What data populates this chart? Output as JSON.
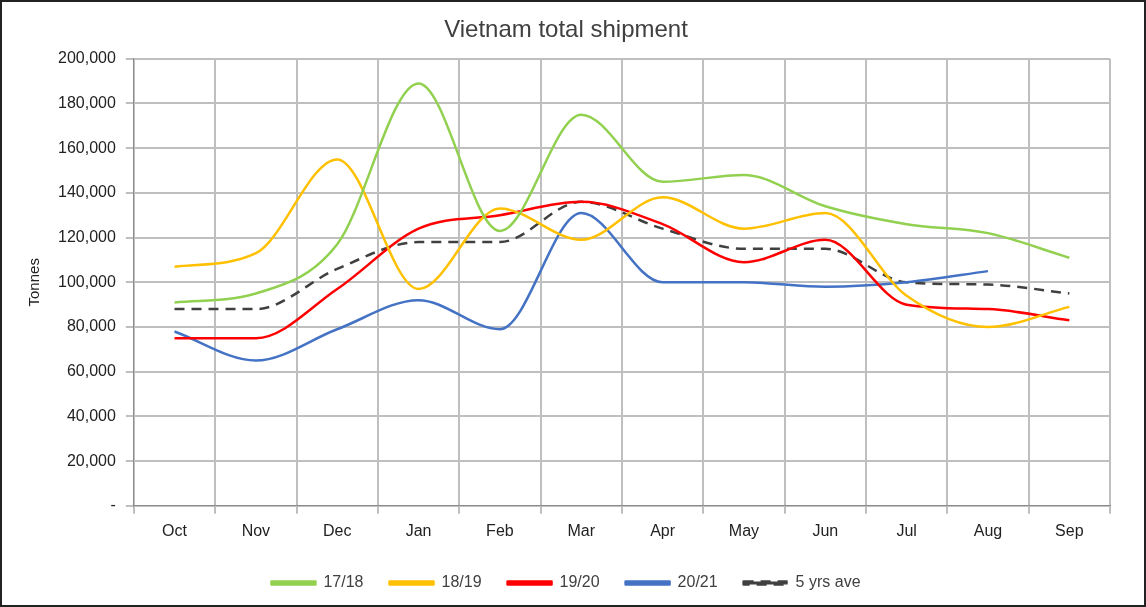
{
  "chart_data": {
    "type": "line",
    "title": "Vietnam total shipment",
    "ylabel": "Tonnes",
    "categories": [
      "Oct",
      "Nov",
      "Dec",
      "Jan",
      "Feb",
      "Mar",
      "Apr",
      "May",
      "Jun",
      "Jul",
      "Aug",
      "Sep"
    ],
    "series": [
      {
        "name": "17/18",
        "color": "#92d050",
        "values": [
          91000,
          95000,
          117000,
          189000,
          123000,
          175000,
          145000,
          148000,
          134000,
          126000,
          122000,
          111000
        ]
      },
      {
        "name": "18/19",
        "color": "#ffc000",
        "values": [
          107000,
          113000,
          155000,
          97000,
          133000,
          119000,
          138000,
          124000,
          131000,
          94000,
          80000,
          89000
        ]
      },
      {
        "name": "19/20",
        "color": "#ff0000",
        "values": [
          75000,
          75000,
          97000,
          124000,
          130000,
          136000,
          126000,
          109000,
          119000,
          90000,
          88000,
          83000
        ]
      },
      {
        "name": "20/21",
        "color": "#4472c4",
        "values": [
          78000,
          65000,
          79000,
          92000,
          79000,
          131000,
          100000,
          100000,
          98000,
          100000,
          105000,
          null
        ]
      },
      {
        "name": "5 yrs ave",
        "color": "#404040",
        "line_style": "dashed",
        "values": [
          88000,
          88000,
          106000,
          118000,
          118000,
          136000,
          124000,
          115000,
          115000,
          100000,
          99000,
          95000
        ]
      }
    ],
    "ylim": [
      0,
      200000
    ],
    "yticks": [
      {
        "value": 0,
        "label": "-"
      },
      {
        "value": 20000,
        "label": "20,000"
      },
      {
        "value": 40000,
        "label": "40,000"
      },
      {
        "value": 60000,
        "label": "60,000"
      },
      {
        "value": 80000,
        "label": "80,000"
      },
      {
        "value": 100000,
        "label": "100,000"
      },
      {
        "value": 120000,
        "label": "120,000"
      },
      {
        "value": 140000,
        "label": "140,000"
      },
      {
        "value": 160000,
        "label": "160,000"
      },
      {
        "value": 180000,
        "label": "180,000"
      },
      {
        "value": 200000,
        "label": "200,000"
      }
    ],
    "grid": true,
    "legend": "bottom",
    "marker": "none"
  }
}
